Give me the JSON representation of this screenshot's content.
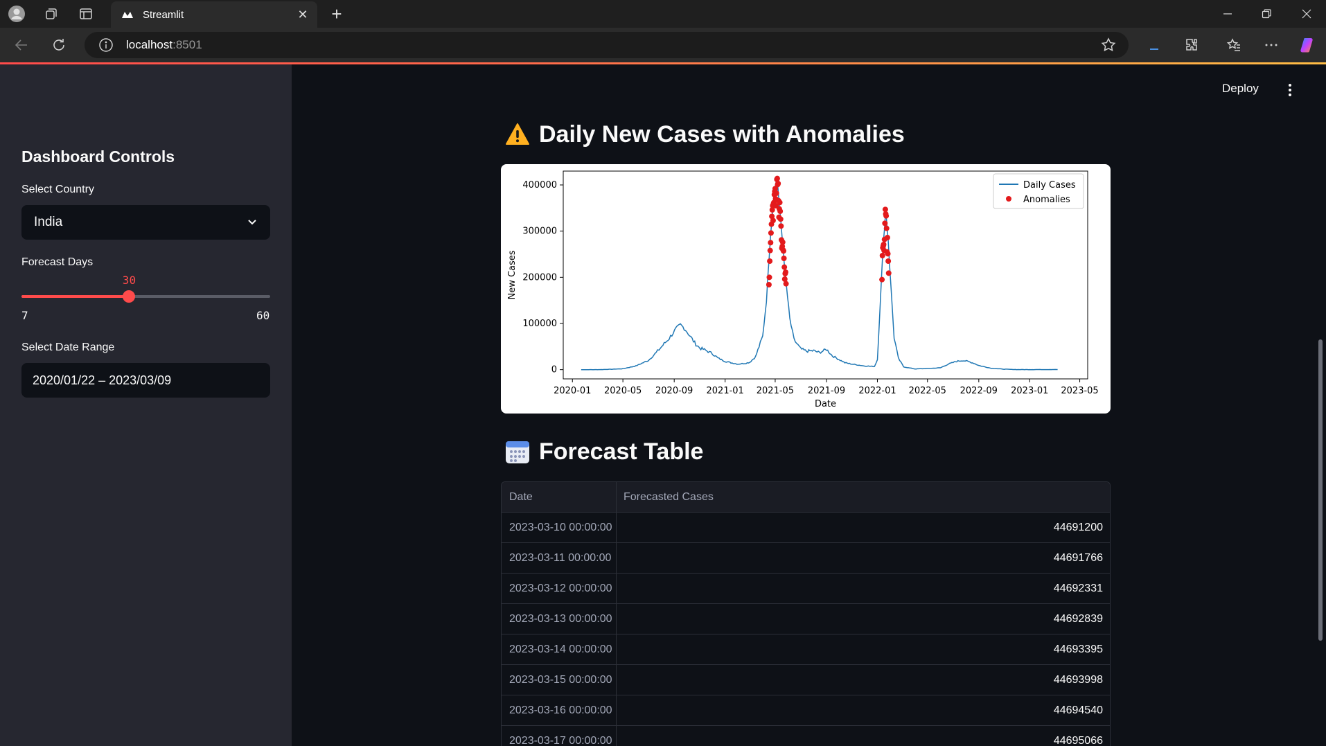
{
  "browser": {
    "tab_title": "Streamlit",
    "url_host": "localhost",
    "url_port": ":8501"
  },
  "sidebar": {
    "title": "Dashboard Controls",
    "country_label": "Select Country",
    "country_value": "India",
    "forecast_label": "Forecast Days",
    "forecast_value": "30",
    "forecast_min": "7",
    "forecast_max": "60",
    "forecast_fraction": 0.433,
    "date_label": "Select Date Range",
    "date_value": "2020/01/22 – 2023/03/09"
  },
  "header": {
    "deploy_label": "Deploy"
  },
  "main": {
    "chart_title": "Daily New Cases with Anomalies",
    "table_title": "Forecast Table",
    "table_columns": [
      "Date",
      "Forecasted Cases"
    ],
    "table_rows": [
      [
        "2023-03-10 00:00:00",
        "44691200"
      ],
      [
        "2023-03-11 00:00:00",
        "44691766"
      ],
      [
        "2023-03-12 00:00:00",
        "44692331"
      ],
      [
        "2023-03-13 00:00:00",
        "44692839"
      ],
      [
        "2023-03-14 00:00:00",
        "44693395"
      ],
      [
        "2023-03-15 00:00:00",
        "44693998"
      ],
      [
        "2023-03-16 00:00:00",
        "44694540"
      ],
      [
        "2023-03-17 00:00:00",
        "44695066"
      ]
    ]
  },
  "colors": {
    "accent": "#ff4b4b",
    "line": "#1f77b4",
    "anomaly": "#e31a1c"
  },
  "chart_data": {
    "type": "line",
    "xlabel": "Date",
    "ylabel": "New Cases",
    "x_ticks": [
      "2020-01",
      "2020-05",
      "2020-09",
      "2021-01",
      "2021-05",
      "2021-09",
      "2022-01",
      "2022-05",
      "2022-09",
      "2023-01",
      "2023-05"
    ],
    "y_ticks": [
      "0",
      "100000",
      "200000",
      "300000",
      "400000"
    ],
    "xlim": [
      "2019-12-10",
      "2023-05-20"
    ],
    "ylim": [
      -20000,
      430000
    ],
    "legend_position": "top-right",
    "series": [
      {
        "name": "Daily Cases",
        "kind": "line",
        "points": [
          [
            "2020-01-22",
            0
          ],
          [
            "2020-03-01",
            0
          ],
          [
            "2020-04-01",
            800
          ],
          [
            "2020-05-01",
            2000
          ],
          [
            "2020-06-01",
            8000
          ],
          [
            "2020-07-01",
            20000
          ],
          [
            "2020-07-20",
            37000
          ],
          [
            "2020-08-05",
            53000
          ],
          [
            "2020-08-20",
            68000
          ],
          [
            "2020-09-05",
            88000
          ],
          [
            "2020-09-16",
            97000
          ],
          [
            "2020-09-25",
            90000
          ],
          [
            "2020-10-05",
            78000
          ],
          [
            "2020-10-20",
            58000
          ],
          [
            "2020-11-01",
            47000
          ],
          [
            "2020-11-15",
            42000
          ],
          [
            "2020-12-01",
            35000
          ],
          [
            "2020-12-15",
            25000
          ],
          [
            "2021-01-01",
            18000
          ],
          [
            "2021-01-15",
            15000
          ],
          [
            "2021-02-01",
            12000
          ],
          [
            "2021-02-20",
            14000
          ],
          [
            "2021-03-01",
            16000
          ],
          [
            "2021-03-15",
            28000
          ],
          [
            "2021-04-01",
            72000
          ],
          [
            "2021-04-10",
            150000
          ],
          [
            "2021-04-20",
            295000
          ],
          [
            "2021-04-30",
            395000
          ],
          [
            "2021-05-06",
            414000
          ],
          [
            "2021-05-12",
            345000
          ],
          [
            "2021-05-20",
            260000
          ],
          [
            "2021-05-28",
            180000
          ],
          [
            "2021-06-05",
            110000
          ],
          [
            "2021-06-15",
            65000
          ],
          [
            "2021-07-01",
            45000
          ],
          [
            "2021-07-15",
            40000
          ],
          [
            "2021-08-01",
            41000
          ],
          [
            "2021-08-15",
            37000
          ],
          [
            "2021-09-01",
            44000
          ],
          [
            "2021-09-15",
            30000
          ],
          [
            "2021-10-01",
            22000
          ],
          [
            "2021-10-15",
            15000
          ],
          [
            "2021-11-01",
            12000
          ],
          [
            "2021-12-01",
            8000
          ],
          [
            "2021-12-25",
            7000
          ],
          [
            "2022-01-01",
            22000
          ],
          [
            "2022-01-08",
            150000
          ],
          [
            "2022-01-15",
            270000
          ],
          [
            "2022-01-21",
            347000
          ],
          [
            "2022-01-27",
            280000
          ],
          [
            "2022-02-03",
            170000
          ],
          [
            "2022-02-10",
            70000
          ],
          [
            "2022-02-20",
            25000
          ],
          [
            "2022-03-05",
            6000
          ],
          [
            "2022-04-01",
            1500
          ],
          [
            "2022-05-01",
            2500
          ],
          [
            "2022-06-01",
            4000
          ],
          [
            "2022-06-20",
            12000
          ],
          [
            "2022-07-10",
            18000
          ],
          [
            "2022-07-25",
            20000
          ],
          [
            "2022-08-05",
            18000
          ],
          [
            "2022-08-20",
            14000
          ],
          [
            "2022-09-01",
            9000
          ],
          [
            "2022-10-01",
            3000
          ],
          [
            "2022-11-01",
            1000
          ],
          [
            "2022-12-01",
            200
          ],
          [
            "2023-01-01",
            150
          ],
          [
            "2023-03-09",
            300
          ]
        ]
      },
      {
        "name": "Anomalies",
        "kind": "scatter",
        "points": [
          [
            "2021-04-16",
            184000
          ],
          [
            "2021-04-17",
            200000
          ],
          [
            "2021-04-18",
            235000
          ],
          [
            "2021-04-19",
            258000
          ],
          [
            "2021-04-20",
            275000
          ],
          [
            "2021-04-21",
            296000
          ],
          [
            "2021-04-22",
            315000
          ],
          [
            "2021-04-23",
            332000
          ],
          [
            "2021-04-24",
            346000
          ],
          [
            "2021-04-25",
            355000
          ],
          [
            "2021-04-26",
            323000
          ],
          [
            "2021-04-27",
            360000
          ],
          [
            "2021-04-28",
            362000
          ],
          [
            "2021-04-29",
            379000
          ],
          [
            "2021-04-30",
            386000
          ],
          [
            "2021-05-01",
            392000
          ],
          [
            "2021-05-02",
            370000
          ],
          [
            "2021-05-03",
            355000
          ],
          [
            "2021-05-04",
            382000
          ],
          [
            "2021-05-05",
            412000
          ],
          [
            "2021-05-06",
            414000
          ],
          [
            "2021-05-07",
            401000
          ],
          [
            "2021-05-08",
            403000
          ],
          [
            "2021-05-09",
            366000
          ],
          [
            "2021-05-10",
            330000
          ],
          [
            "2021-05-11",
            348000
          ],
          [
            "2021-05-12",
            362000
          ],
          [
            "2021-05-13",
            343000
          ],
          [
            "2021-05-14",
            326000
          ],
          [
            "2021-05-15",
            311000
          ],
          [
            "2021-05-16",
            281000
          ],
          [
            "2021-05-17",
            263000
          ],
          [
            "2021-05-18",
            267000
          ],
          [
            "2021-05-19",
            276000
          ],
          [
            "2021-05-20",
            259000
          ],
          [
            "2021-05-21",
            257000
          ],
          [
            "2021-05-22",
            241000
          ],
          [
            "2021-05-23",
            222000
          ],
          [
            "2021-05-24",
            196000
          ],
          [
            "2021-05-25",
            208000
          ],
          [
            "2021-05-26",
            211000
          ],
          [
            "2021-05-27",
            186000
          ],
          [
            "2022-01-12",
            195000
          ],
          [
            "2022-01-13",
            247000
          ],
          [
            "2022-01-14",
            264000
          ],
          [
            "2022-01-15",
            268000
          ],
          [
            "2022-01-16",
            271000
          ],
          [
            "2022-01-17",
            258000
          ],
          [
            "2022-01-18",
            282000
          ],
          [
            "2022-01-19",
            317000
          ],
          [
            "2022-01-20",
            347000
          ],
          [
            "2022-01-21",
            337000
          ],
          [
            "2022-01-22",
            333000
          ],
          [
            "2022-01-23",
            306000
          ],
          [
            "2022-01-24",
            255000
          ],
          [
            "2022-01-25",
            286000
          ],
          [
            "2022-01-26",
            251000
          ],
          [
            "2022-01-27",
            235000
          ],
          [
            "2022-01-28",
            209000
          ]
        ]
      }
    ]
  }
}
